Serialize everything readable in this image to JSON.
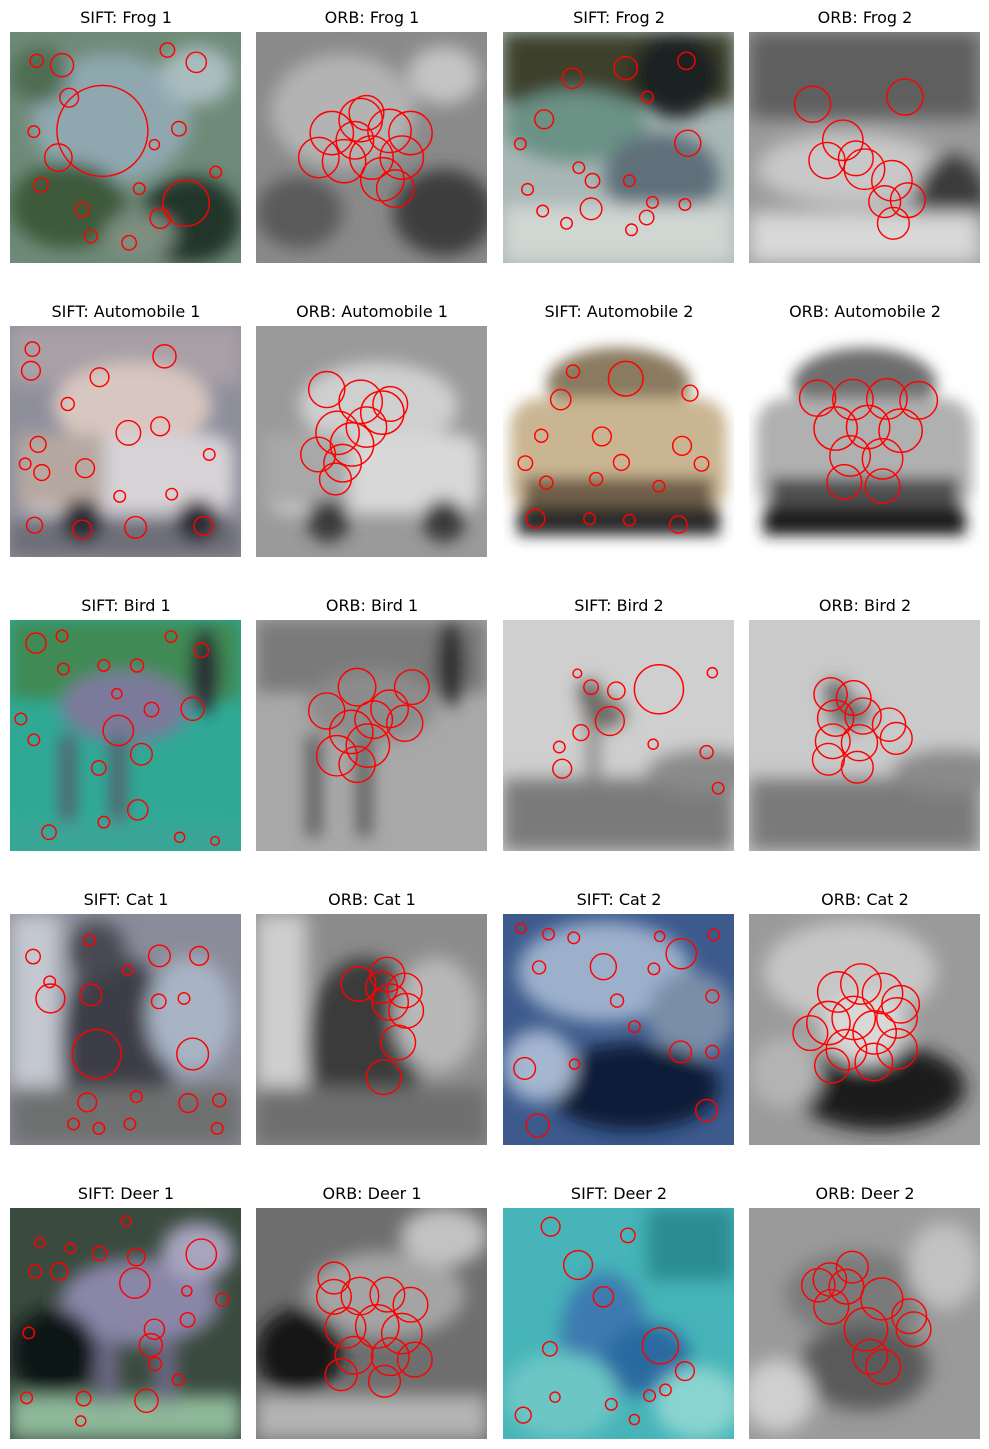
{
  "figure": {
    "keypoint_color": "#ff0000",
    "panels": [
      {
        "title": "SIFT: Frog 1",
        "theme": "sift-frog",
        "method": "sift",
        "colored": true
      },
      {
        "title": "ORB: Frog 1",
        "theme": "orb-frog",
        "method": "orb",
        "colored": false
      },
      {
        "title": "SIFT: Frog 2",
        "theme": "sift-frog2",
        "method": "sift",
        "colored": true
      },
      {
        "title": "ORB: Frog 2",
        "theme": "orb-frog2",
        "method": "orb",
        "colored": false
      },
      {
        "title": "SIFT: Automobile 1",
        "theme": "sift-car1",
        "method": "sift",
        "colored": true
      },
      {
        "title": "ORB: Automobile 1",
        "theme": "orb-car1",
        "method": "orb",
        "colored": false
      },
      {
        "title": "SIFT: Automobile 2",
        "theme": "sift-car2",
        "method": "sift",
        "colored": true
      },
      {
        "title": "ORB: Automobile 2",
        "theme": "orb-car2",
        "method": "orb",
        "colored": false
      },
      {
        "title": "SIFT: Bird 1",
        "theme": "sift-bird1",
        "method": "sift",
        "colored": true
      },
      {
        "title": "ORB: Bird 1",
        "theme": "orb-bird1",
        "method": "orb",
        "colored": false
      },
      {
        "title": "SIFT: Bird 2",
        "theme": "sift-bird2",
        "method": "sift",
        "colored": true
      },
      {
        "title": "ORB: Bird 2",
        "theme": "orb-bird2",
        "method": "orb",
        "colored": false
      },
      {
        "title": "SIFT: Cat 1",
        "theme": "sift-cat1",
        "method": "sift",
        "colored": true
      },
      {
        "title": "ORB: Cat 1",
        "theme": "orb-cat1",
        "method": "orb",
        "colored": false
      },
      {
        "title": "SIFT: Cat 2",
        "theme": "sift-cat2",
        "method": "sift",
        "colored": true
      },
      {
        "title": "ORB: Cat 2",
        "theme": "orb-cat2",
        "method": "orb",
        "colored": false
      },
      {
        "title": "SIFT: Deer 1",
        "theme": "sift-deer1",
        "method": "sift",
        "colored": true
      },
      {
        "title": "ORB: Deer 1",
        "theme": "orb-deer1",
        "method": "orb",
        "colored": false
      },
      {
        "title": "SIFT: Deer 2",
        "theme": "sift-deer2",
        "method": "sift",
        "colored": true
      },
      {
        "title": "ORB: Deer 2",
        "theme": "orb-deer2",
        "method": "orb",
        "colored": false
      }
    ]
  }
}
